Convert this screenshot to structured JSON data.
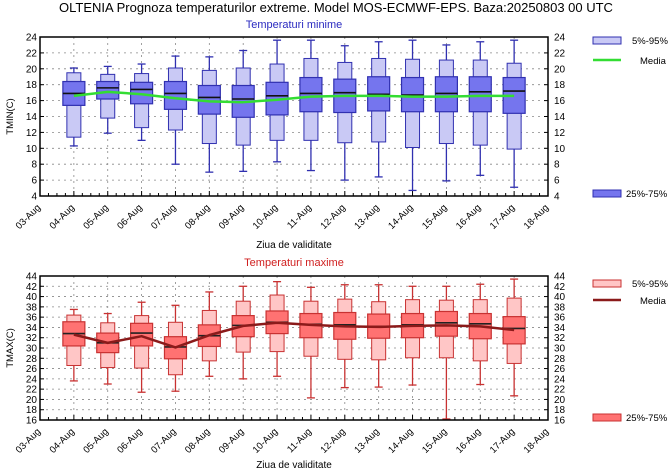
{
  "title": "OLTENIA  Prognoza temperaturilor extreme.  Model MOS-ECMWF-EPS. Baza:20250803 00 UTC",
  "chart_data": [
    {
      "type": "box",
      "title": "Temperaturi minime",
      "ylabel": "TMIN(C)",
      "xlabel": "Ziua de validitate",
      "ylim": [
        4,
        24
      ],
      "yticks": [
        4,
        6,
        8,
        10,
        12,
        14,
        16,
        18,
        20,
        22,
        24
      ],
      "xticks": [
        "03-Aug",
        "04-Aug",
        "05-Aug",
        "06-Aug",
        "07-Aug",
        "08-Aug",
        "09-Aug",
        "10-Aug",
        "11-Aug",
        "12-Aug",
        "13-Aug",
        "14-Aug",
        "15-Aug",
        "16-Aug",
        "17-Aug",
        "18-Aug"
      ],
      "grid": true,
      "legend": {
        "p5_95": "5%-95%",
        "mean": "Media",
        "p25_75": "25%-75%",
        "placement": "right"
      },
      "colors": {
        "outer": "#c9c9f5",
        "inner": "#7575ee",
        "edge": "#3030b0",
        "mean": "#33dd33",
        "median": "#111111",
        "title": "#2a2ac0"
      },
      "categories": [
        "04-Aug",
        "05-Aug",
        "06-Aug",
        "07-Aug",
        "08-Aug",
        "09-Aug",
        "10-Aug",
        "11-Aug",
        "12-Aug",
        "13-Aug",
        "14-Aug",
        "15-Aug",
        "16-Aug",
        "17-Aug"
      ],
      "min": [
        10.3,
        11.9,
        11.0,
        8.0,
        7.0,
        7.1,
        8.3,
        7.2,
        6.0,
        6.4,
        4.7,
        5.9,
        6.6,
        5.1
      ],
      "p5": [
        11.4,
        13.8,
        12.6,
        12.3,
        10.6,
        10.4,
        11.0,
        11.0,
        10.7,
        10.8,
        10.1,
        10.6,
        10.4,
        9.9
      ],
      "p25": [
        15.4,
        16.2,
        15.6,
        14.9,
        14.3,
        13.9,
        14.2,
        14.6,
        14.5,
        14.7,
        14.6,
        14.6,
        14.6,
        14.4
      ],
      "median": [
        16.9,
        17.6,
        17.4,
        16.9,
        16.4,
        16.2,
        16.6,
        16.9,
        17.0,
        16.8,
        16.7,
        16.9,
        17.1,
        17.2
      ],
      "p75": [
        18.4,
        18.4,
        18.3,
        18.4,
        17.9,
        17.9,
        18.3,
        18.9,
        18.7,
        19.0,
        18.9,
        19.0,
        19.0,
        18.9
      ],
      "p95": [
        19.5,
        19.3,
        19.4,
        20.1,
        19.8,
        20.1,
        20.6,
        21.3,
        20.8,
        21.3,
        21.2,
        21.1,
        21.1,
        20.7
      ],
      "max": [
        20.1,
        20.3,
        20.6,
        21.6,
        21.5,
        22.3,
        23.6,
        23.6,
        22.9,
        23.4,
        23.6,
        23.0,
        23.4,
        23.6
      ],
      "mean": [
        16.6,
        17.1,
        16.8,
        16.3,
        15.9,
        15.8,
        16.1,
        16.5,
        16.6,
        16.6,
        16.5,
        16.5,
        16.6,
        16.6
      ]
    },
    {
      "type": "box",
      "title": "Temperaturi maxime",
      "ylabel": "TMAX(C)",
      "xlabel": "Ziua de validitate",
      "ylim": [
        16,
        44
      ],
      "yticks": [
        16,
        18,
        20,
        22,
        24,
        26,
        28,
        30,
        32,
        34,
        36,
        38,
        40,
        42,
        44
      ],
      "xticks": [
        "03-Aug",
        "04-Aug",
        "05-Aug",
        "06-Aug",
        "07-Aug",
        "08-Aug",
        "09-Aug",
        "10-Aug",
        "11-Aug",
        "12-Aug",
        "13-Aug",
        "14-Aug",
        "15-Aug",
        "16-Aug",
        "17-Aug",
        "18-Aug"
      ],
      "grid": true,
      "legend": {
        "p5_95": "5%-95%",
        "mean": "Media",
        "p25_75": "25%-75%",
        "placement": "right"
      },
      "colors": {
        "outer": "#ffc6c6",
        "inner": "#ff7272",
        "edge": "#c83232",
        "mean": "#8b1a1a",
        "median": "#222222",
        "title": "#d02020"
      },
      "categories": [
        "04-Aug",
        "05-Aug",
        "06-Aug",
        "07-Aug",
        "08-Aug",
        "09-Aug",
        "10-Aug",
        "11-Aug",
        "12-Aug",
        "13-Aug",
        "14-Aug",
        "15-Aug",
        "16-Aug",
        "17-Aug"
      ],
      "min": [
        23.6,
        23.0,
        21.4,
        21.6,
        24.5,
        24.0,
        24.5,
        20.3,
        22.3,
        22.4,
        22.8,
        16.2,
        22.9,
        20.7
      ],
      "p5": [
        26.6,
        26.2,
        26.1,
        24.8,
        27.5,
        29.2,
        29.3,
        28.4,
        27.8,
        27.7,
        28.1,
        28.1,
        27.5,
        27.0
      ],
      "p25": [
        30.4,
        29.1,
        30.4,
        27.9,
        30.3,
        32.2,
        32.8,
        32.0,
        31.7,
        31.9,
        32.0,
        32.3,
        31.8,
        30.8
      ],
      "median": [
        32.8,
        31.0,
        32.9,
        30.2,
        32.4,
        34.4,
        35.0,
        34.6,
        34.5,
        34.2,
        34.5,
        34.9,
        34.7,
        33.8
      ],
      "p75": [
        35.1,
        32.9,
        34.8,
        32.2,
        34.5,
        36.3,
        37.2,
        36.7,
        36.9,
        36.6,
        36.7,
        37.1,
        36.7,
        36.1
      ],
      "p95": [
        36.4,
        34.9,
        36.3,
        35.0,
        37.3,
        39.1,
        40.3,
        39.1,
        39.5,
        39.0,
        39.4,
        39.3,
        39.4,
        39.7
      ],
      "max": [
        37.5,
        36.7,
        38.9,
        38.3,
        40.9,
        42.0,
        42.9,
        41.8,
        42.3,
        42.3,
        42.0,
        42.0,
        42.4,
        43.4
      ],
      "mean": [
        32.6,
        31.0,
        32.3,
        30.1,
        32.5,
        34.3,
        34.9,
        34.5,
        34.2,
        34.1,
        34.3,
        34.4,
        34.2,
        33.5
      ]
    }
  ]
}
